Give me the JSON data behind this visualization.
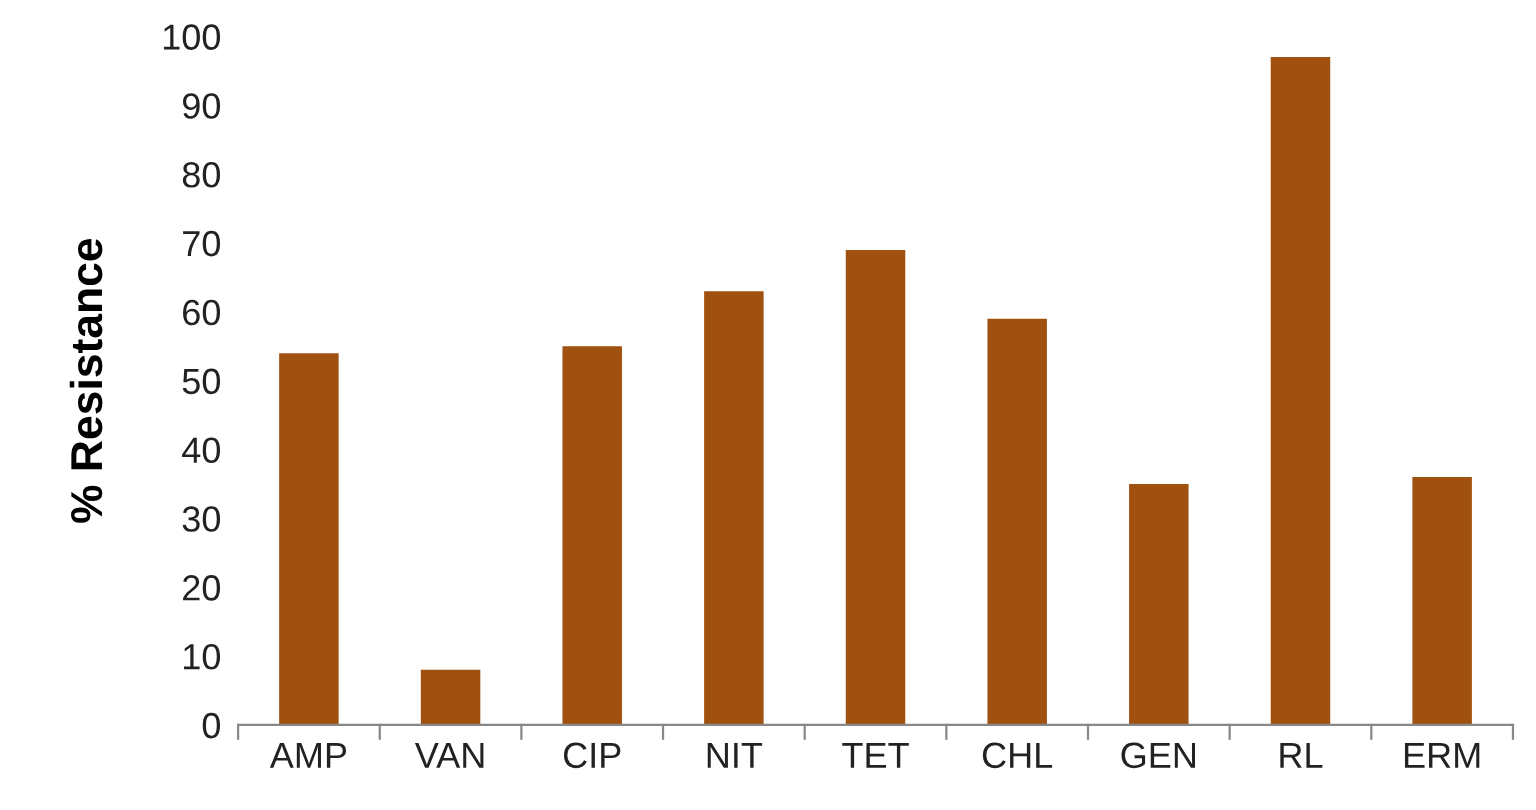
{
  "chart_data": {
    "type": "bar",
    "ylabel": "% Resistance",
    "categories": [
      "AMP",
      "VAN",
      "CIP",
      "NIT",
      "TET",
      "CHL",
      "GEN",
      "RL",
      "ERM"
    ],
    "values": [
      54,
      8,
      55,
      63,
      69,
      59,
      35,
      97,
      36
    ],
    "color": "#a0500f",
    "ylim": [
      0,
      100
    ],
    "yticks": [
      0,
      10,
      20,
      30,
      40,
      50,
      60,
      70,
      80,
      90,
      100
    ],
    "grid": false,
    "legend": false
  }
}
